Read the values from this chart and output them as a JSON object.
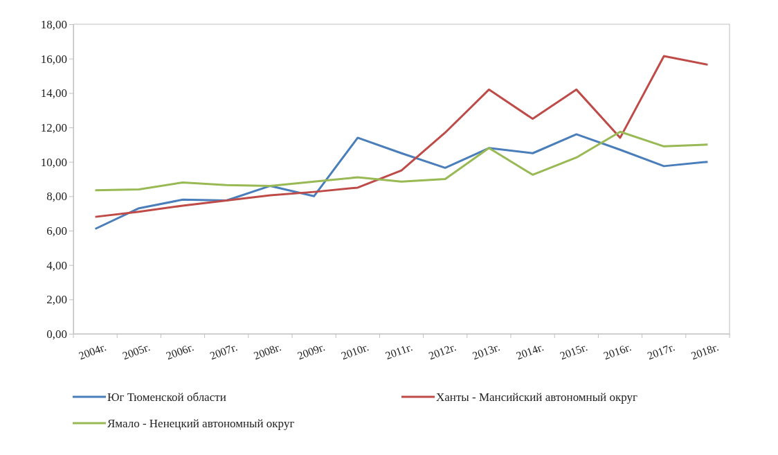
{
  "chart_data": {
    "type": "line",
    "categories": [
      "2004г.",
      "2005г.",
      "2006г.",
      "2007г.",
      "2008г.",
      "2009г.",
      "2010г.",
      "2011г.",
      "2012г.",
      "2013г.",
      "2014г.",
      "2015г.",
      "2016г.",
      "2017г.",
      "2018г."
    ],
    "series": [
      {
        "name": "Юг Тюменской области",
        "color": "#4a7ebb",
        "values": [
          6.1,
          7.3,
          7.8,
          7.75,
          8.6,
          8.0,
          11.4,
          10.5,
          9.65,
          10.8,
          10.5,
          11.6,
          10.7,
          9.75,
          10.0
        ]
      },
      {
        "name": "Ханты - Мансийский автономный округ",
        "color": "#be4b48",
        "values": [
          6.8,
          7.1,
          7.45,
          7.75,
          8.05,
          8.25,
          8.5,
          9.5,
          11.7,
          14.2,
          12.5,
          14.2,
          11.4,
          16.15,
          15.65
        ]
      },
      {
        "name": "Ямало - Ненецкий автономный округ",
        "color": "#98b954",
        "values": [
          8.35,
          8.4,
          8.8,
          8.65,
          8.6,
          8.85,
          9.1,
          8.85,
          9.0,
          10.8,
          9.25,
          10.25,
          11.75,
          10.9,
          11.0
        ]
      }
    ],
    "ylim": [
      0,
      18
    ],
    "yticks": [
      {
        "value": 0,
        "label": "0,00"
      },
      {
        "value": 2,
        "label": "2,00"
      },
      {
        "value": 4,
        "label": "4,00"
      },
      {
        "value": 6,
        "label": "6,00"
      },
      {
        "value": 8,
        "label": "8,00"
      },
      {
        "value": 10,
        "label": "10,00"
      },
      {
        "value": 12,
        "label": "12,00"
      },
      {
        "value": 14,
        "label": "14,00"
      },
      {
        "value": 16,
        "label": "16,00"
      },
      {
        "value": 18,
        "label": "18,00"
      }
    ],
    "grid": false,
    "legend": "bottom",
    "marker": "none",
    "line_style": "solid"
  }
}
